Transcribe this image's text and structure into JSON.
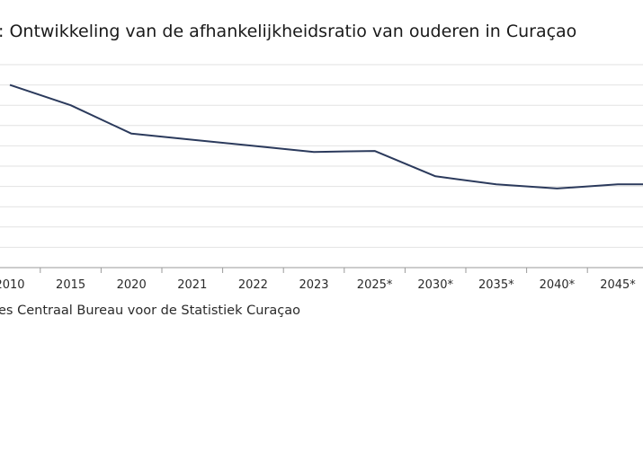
{
  "chart": {
    "title": ": Ontwikkeling van de afhankelijkheidsratio van ouderen in Curaçao",
    "source": "es Centraal Bureau voor de Statistiek Curaçao"
  },
  "colors": {
    "line": "#2b3a5c",
    "grid": "#e2e2e2",
    "axis": "#9a9a9a"
  },
  "chart_data": {
    "type": "line",
    "title": ": Ontwikkeling van de afhankelijkheidsratio van ouderen in Curaçao",
    "categories": [
      "2010",
      "2015",
      "2020",
      "2021",
      "2022",
      "2023",
      "2025*",
      "2030*",
      "2035*",
      "2040*",
      "2045*",
      ""
    ],
    "series": [
      {
        "values": [
          9.0,
          8.0,
          6.6,
          6.3,
          6.0,
          5.7,
          5.75,
          4.5,
          4.1,
          3.9,
          4.1,
          4.1
        ]
      }
    ],
    "ylim": [
      0,
      10
    ],
    "gridlines": 10,
    "grid": true,
    "legend": "none"
  }
}
